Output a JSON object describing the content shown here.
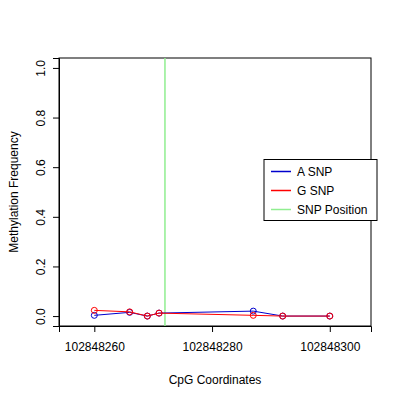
{
  "chart_data": {
    "type": "line",
    "x_label": "CpG Coordinates",
    "y_label": "Methylation Frequency",
    "x": [
      102848260,
      102848266,
      102848269,
      102848271,
      102848287,
      102848292,
      102848300
    ],
    "series": [
      {
        "name": "A SNP",
        "color": "#0000cd",
        "marker": "circle",
        "line_style": "solid",
        "values": [
          0.003,
          0.015,
          0.0,
          0.012,
          0.02,
          0.0,
          0.0
        ]
      },
      {
        "name": "G SNP",
        "color": "#ff0000",
        "marker": "circle",
        "line_style": "solid",
        "values": [
          0.023,
          0.017,
          0.0,
          0.012,
          0.003,
          0.0,
          0.0
        ]
      }
    ],
    "snp": {
      "name": "SNP Position",
      "color": "#90ee90",
      "x": 102848272
    },
    "xlim": [
      102848254,
      102848307
    ],
    "xticks": [
      102848260,
      102848280,
      102848300
    ],
    "ylim": [
      -0.04,
      1.04
    ],
    "yticks": [
      {
        "value": 0,
        "label": "0.0"
      },
      {
        "value": 0.2,
        "label": "0.2"
      },
      {
        "value": 0.4,
        "label": "0.4"
      },
      {
        "value": 0.6,
        "label": "0.6"
      },
      {
        "value": 0.8,
        "label": "0.8"
      },
      {
        "value": 1,
        "label": "1.0"
      }
    ],
    "legend": "right",
    "grid": false
  }
}
